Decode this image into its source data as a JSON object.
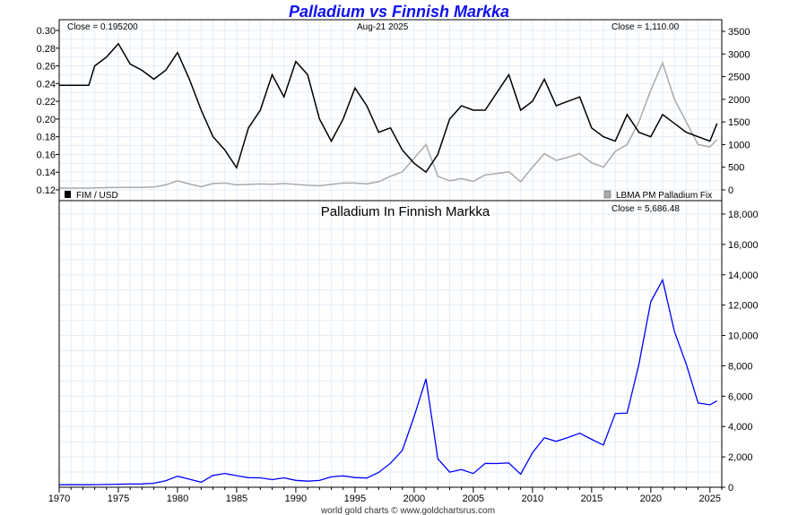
{
  "chart_data": [
    {
      "type": "line",
      "title": "Palladium vs Finnish Markka",
      "date_label": "Aug-21  2025",
      "left_close": "Close = 0.195200",
      "right_close": "Close = 1,110.00",
      "legend_left": "FIM / USD",
      "legend_right": "LBMA PM Palladium Fix",
      "ylim_left": [
        0.12,
        0.3
      ],
      "yticks_left": [
        "0.30",
        "0.28",
        "0.26",
        "0.24",
        "0.22",
        "0.20",
        "0.18",
        "0.16",
        "0.14",
        "0.12"
      ],
      "ylim_right": [
        0,
        3500
      ],
      "yticks_right": [
        "3500",
        "3000",
        "2500",
        "2000",
        "1500",
        "1000",
        "500",
        "0"
      ],
      "x": [
        1970,
        1972.5,
        1973,
        1974,
        1975,
        1976,
        1977,
        1978,
        1979,
        1980,
        1981,
        1982,
        1983,
        1984,
        1985,
        1986,
        1987,
        1988,
        1989,
        1990,
        1991,
        1992,
        1993,
        1994,
        1995,
        1996,
        1997,
        1998,
        1999,
        2000,
        2001,
        2002,
        2003,
        2004,
        2005,
        2006,
        2007,
        2008,
        2009,
        2010,
        2011,
        2012,
        2013,
        2014,
        2015,
        2016,
        2017,
        2018,
        2019,
        2020,
        2021,
        2022,
        2023,
        2024,
        2025,
        2025.6
      ],
      "series": [
        {
          "name": "FIM / USD",
          "axis": "left",
          "color": "#000000",
          "values": [
            0.238,
            0.238,
            0.26,
            0.27,
            0.285,
            0.262,
            0.255,
            0.245,
            0.255,
            0.275,
            0.245,
            0.21,
            0.18,
            0.165,
            0.145,
            0.19,
            0.21,
            0.25,
            0.225,
            0.265,
            0.25,
            0.2,
            0.175,
            0.2,
            0.235,
            0.215,
            0.185,
            0.19,
            0.165,
            0.15,
            0.14,
            0.16,
            0.2,
            0.215,
            0.21,
            0.21,
            0.23,
            0.25,
            0.21,
            0.22,
            0.245,
            0.215,
            0.22,
            0.225,
            0.19,
            0.18,
            0.175,
            0.205,
            0.185,
            0.18,
            0.205,
            0.195,
            0.185,
            0.18,
            0.175,
            0.195
          ]
        },
        {
          "name": "LBMA PM Palladium Fix",
          "axis": "right",
          "color": "#aaaaaa",
          "values": [
            40,
            40,
            45,
            50,
            55,
            55,
            55,
            65,
            110,
            200,
            130,
            70,
            140,
            150,
            110,
            120,
            130,
            125,
            140,
            120,
            100,
            90,
            120,
            150,
            150,
            130,
            180,
            300,
            400,
            700,
            1000,
            300,
            200,
            250,
            190,
            330,
            360,
            400,
            180,
            500,
            800,
            650,
            720,
            800,
            600,
            500,
            850,
            1000,
            1500,
            2200,
            2800,
            2000,
            1500,
            1000,
            950,
            1110
          ]
        }
      ]
    },
    {
      "type": "line",
      "title": "Palladium In Finnish Markka",
      "close": "Close = 5,686.48",
      "ylim": [
        0,
        18000
      ],
      "yticks": [
        "18,000",
        "16,000",
        "14,000",
        "12,000",
        "10,000",
        "8,000",
        "6,000",
        "4,000",
        "2,000",
        "0"
      ],
      "xticks": [
        "1970",
        "1975",
        "1980",
        "1985",
        "1990",
        "1995",
        "2000",
        "2005",
        "2010",
        "2015",
        "2020",
        "2025"
      ],
      "xlim": [
        1970,
        2026
      ],
      "x": [
        1970,
        1972.5,
        1973,
        1974,
        1975,
        1976,
        1977,
        1978,
        1979,
        1980,
        1981,
        1982,
        1983,
        1984,
        1985,
        1986,
        1987,
        1988,
        1989,
        1990,
        1991,
        1992,
        1993,
        1994,
        1995,
        1996,
        1997,
        1998,
        1999,
        2000,
        2001,
        2002,
        2003,
        2004,
        2005,
        2006,
        2007,
        2008,
        2009,
        2010,
        2011,
        2012,
        2013,
        2014,
        2015,
        2016,
        2017,
        2018,
        2019,
        2020,
        2021,
        2022,
        2023,
        2024,
        2025,
        2025.6
      ],
      "series": [
        {
          "name": "Palladium In Finnish Markka",
          "color": "#0000ff",
          "values": [
            168,
            168,
            173,
            185,
            193,
            210,
            216,
            265,
            431,
            727,
            531,
            333,
            778,
            909,
            759,
            632,
            619,
            500,
            622,
            453,
            400,
            450,
            686,
            750,
            638,
            605,
            973,
            1579,
            2424,
            4667,
            7143,
            1875,
            1000,
            1163,
            905,
            1571,
            1565,
            1600,
            857,
            2273,
            3265,
            3023,
            3273,
            3556,
            3158,
            2778,
            4857,
            4878,
            8108,
            12222,
            13659,
            10256,
            8108,
            5556,
            5429,
            5692
          ]
        }
      ]
    }
  ],
  "footer": "world gold charts © www.goldchartsrus.com"
}
